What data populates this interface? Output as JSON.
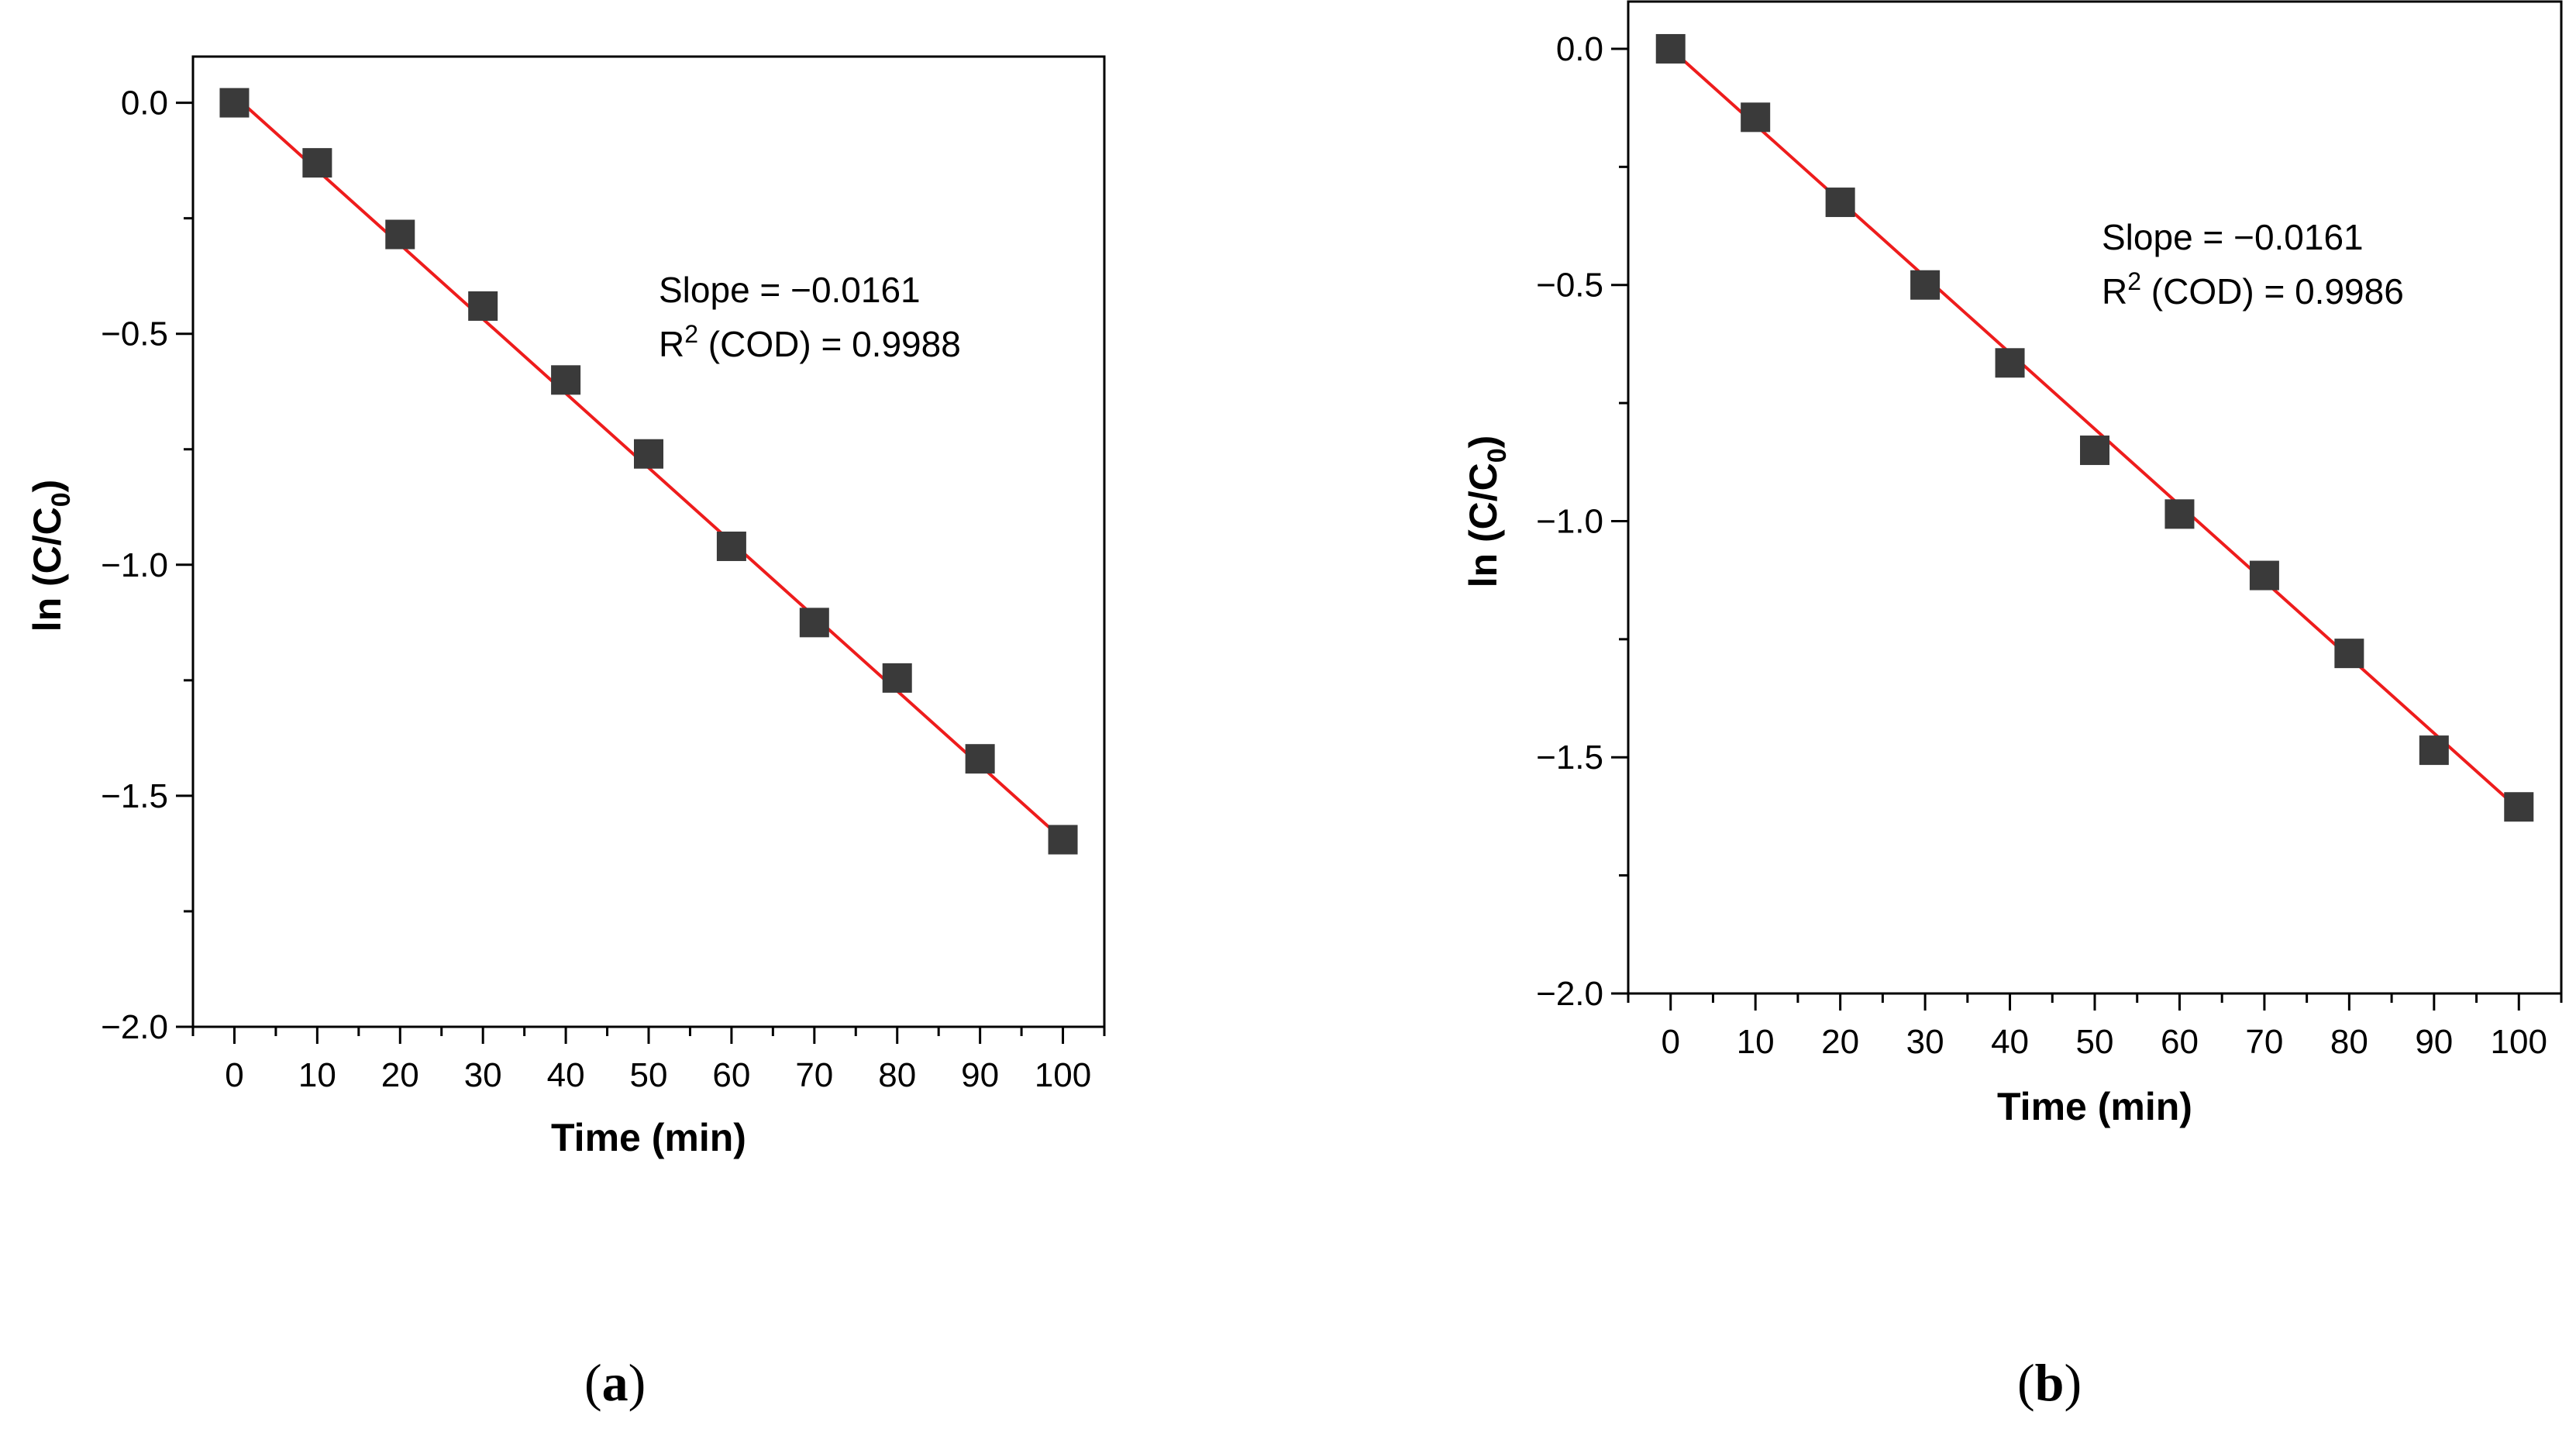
{
  "chart_data": [
    {
      "type": "scatter",
      "panel_label": "a",
      "title": "",
      "xlabel": "Time (min)",
      "ylabel_main": "ln (C/C",
      "ylabel_sub": "0",
      "ylabel_close": ")",
      "xlim": [
        -5,
        105
      ],
      "ylim": [
        -2.0,
        0.1
      ],
      "xticks": [
        "0",
        "10",
        "20",
        "30",
        "40",
        "50",
        "60",
        "70",
        "80",
        "90",
        "100"
      ],
      "xtick_values": [
        0,
        10,
        20,
        30,
        40,
        50,
        60,
        70,
        80,
        90,
        100
      ],
      "yticks": [
        "0.0",
        "−0.5",
        "−1.0",
        "−1.5",
        "−2.0"
      ],
      "ytick_values": [
        0.0,
        -0.5,
        -1.0,
        -1.5,
        -2.0
      ],
      "series": [
        {
          "name": "data",
          "marker": "square",
          "color": "#3a3a3a",
          "x": [
            0,
            10,
            20,
            30,
            40,
            50,
            60,
            70,
            80,
            90,
            100
          ],
          "y": [
            0.0,
            -0.13,
            -0.285,
            -0.44,
            -0.6,
            -0.76,
            -0.96,
            -1.125,
            -1.245,
            -1.42,
            -1.595
          ]
        }
      ],
      "fit": {
        "color": "#ee1c1c",
        "slope": -0.0161,
        "intercept": 0.015,
        "x_range": [
          0,
          100
        ]
      },
      "annotation_line1": "Slope = −0.0161",
      "annotation_line2_main": "R",
      "annotation_line2_sup": "2",
      "annotation_line2_rest": " (COD) = 0.9988"
    },
    {
      "type": "scatter",
      "panel_label": "b",
      "title": "",
      "xlabel": "Time (min)",
      "ylabel_main": "ln (C/C",
      "ylabel_sub": "0",
      "ylabel_close": ")",
      "xlim": [
        -5,
        105
      ],
      "ylim": [
        -2.0,
        0.1
      ],
      "xticks": [
        "0",
        "10",
        "20",
        "30",
        "40",
        "50",
        "60",
        "70",
        "80",
        "90",
        "100"
      ],
      "xtick_values": [
        0,
        10,
        20,
        30,
        40,
        50,
        60,
        70,
        80,
        90,
        100
      ],
      "yticks": [
        "0.0",
        "−0.5",
        "−1.0",
        "−1.5",
        "−2.0"
      ],
      "ytick_values": [
        0.0,
        -0.5,
        -1.0,
        -1.5,
        -2.0
      ],
      "series": [
        {
          "name": "data",
          "marker": "square",
          "color": "#3a3a3a",
          "x": [
            0,
            10,
            20,
            30,
            40,
            50,
            60,
            70,
            80,
            90,
            100
          ],
          "y": [
            0.0,
            -0.145,
            -0.325,
            -0.5,
            -0.665,
            -0.85,
            -0.985,
            -1.115,
            -1.28,
            -1.485,
            -1.605
          ]
        }
      ],
      "fit": {
        "color": "#ee1c1c",
        "slope": -0.0161,
        "intercept": 0.0,
        "x_range": [
          0,
          100
        ]
      },
      "annotation_line1": "Slope = −0.0161",
      "annotation_line2_main": "R",
      "annotation_line2_sup": "2",
      "annotation_line2_rest": " (COD) = 0.9986"
    }
  ],
  "labels": {
    "a": "a",
    "b": "b"
  }
}
